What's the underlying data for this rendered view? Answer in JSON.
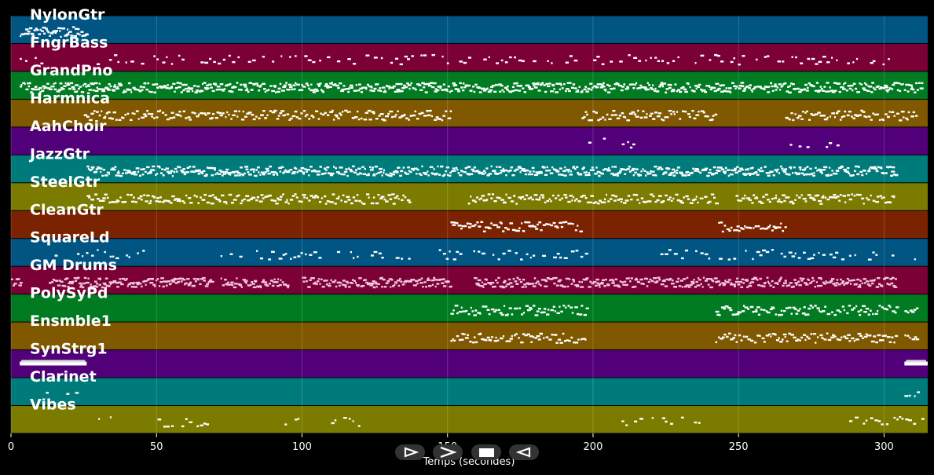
{
  "chart_data": {
    "type": "piano-roll",
    "xlabel": "Temps (secondes)",
    "xlim": [
      0,
      315
    ],
    "xticks": [
      0,
      50,
      100,
      150,
      200,
      250,
      300
    ],
    "grid": true,
    "tracks": [
      {
        "name": "NylonGtr",
        "color": "#005583",
        "segments": [
          [
            3,
            26
          ]
        ],
        "density": "dense"
      },
      {
        "name": "FngrBass",
        "color": "#7a0035",
        "segments": [
          [
            3,
            12
          ],
          [
            28,
            304
          ]
        ],
        "density": "sparse"
      },
      {
        "name": "GrandPno",
        "color": "#007b22",
        "segments": [
          [
            3,
            313
          ]
        ],
        "density": "dense"
      },
      {
        "name": "Harmnica",
        "color": "#7f5800",
        "segments": [
          [
            25,
            151
          ],
          [
            196,
            242
          ],
          [
            266,
            311
          ]
        ],
        "density": "medium"
      },
      {
        "name": "AahChoir",
        "color": "#51007a",
        "segments": [
          [
            196,
            204
          ],
          [
            208,
            215
          ],
          [
            266,
            274
          ],
          [
            278,
            285
          ]
        ],
        "density": "sparse"
      },
      {
        "name": "JazzGtr",
        "color": "#007b7b",
        "segments": [
          [
            26,
            304
          ]
        ],
        "density": "dense"
      },
      {
        "name": "SteelGtr",
        "color": "#7b7b00",
        "segments": [
          [
            26,
            137
          ],
          [
            157,
            242
          ],
          [
            249,
            304
          ]
        ],
        "density": "medium"
      },
      {
        "name": "CleanGtr",
        "color": "#7b2200",
        "segments": [
          [
            151,
            196
          ],
          [
            243,
            266
          ]
        ],
        "density": "medium"
      },
      {
        "name": "SquareLd",
        "color": "#005583",
        "segments": [
          [
            15,
            49
          ],
          [
            72,
            106
          ],
          [
            112,
            140
          ],
          [
            147,
            198
          ],
          [
            222,
            304
          ],
          [
            307,
            311
          ]
        ],
        "density": "sparse"
      },
      {
        "name": "GM Drums",
        "color": "#7a0035",
        "segments": [
          [
            0,
            3
          ],
          [
            13,
            69
          ],
          [
            72,
            95
          ],
          [
            100,
            151
          ],
          [
            159,
            304
          ]
        ],
        "density": "dense"
      },
      {
        "name": "PolySyPd",
        "color": "#007b22",
        "segments": [
          [
            151,
            198
          ],
          [
            242,
            304
          ],
          [
            307,
            311
          ]
        ],
        "density": "medium"
      },
      {
        "name": "Ensmble1",
        "color": "#7f5800",
        "segments": [
          [
            151,
            198
          ],
          [
            242,
            304
          ],
          [
            307,
            311
          ]
        ],
        "density": "medium"
      },
      {
        "name": "SynStrg1",
        "color": "#51007a",
        "segments": [
          [
            3,
            26
          ],
          [
            307,
            315
          ]
        ],
        "density": "block"
      },
      {
        "name": "Clarinet",
        "color": "#007b7b",
        "segments": [
          [
            12,
            14
          ],
          [
            19,
            25
          ],
          [
            307,
            313
          ]
        ],
        "density": "sparse"
      },
      {
        "name": "Vibes",
        "color": "#7b7b00",
        "segments": [
          [
            30,
            35
          ],
          [
            48,
            68
          ],
          [
            94,
            100
          ],
          [
            110,
            120
          ],
          [
            208,
            237
          ],
          [
            288,
            313
          ]
        ],
        "density": "sparse"
      }
    ]
  },
  "controls": {
    "play_icon": "play-icon",
    "forward_icon": "fast-forward-icon",
    "stop_icon": "stop-icon",
    "rewind_icon": "rewind-icon"
  }
}
